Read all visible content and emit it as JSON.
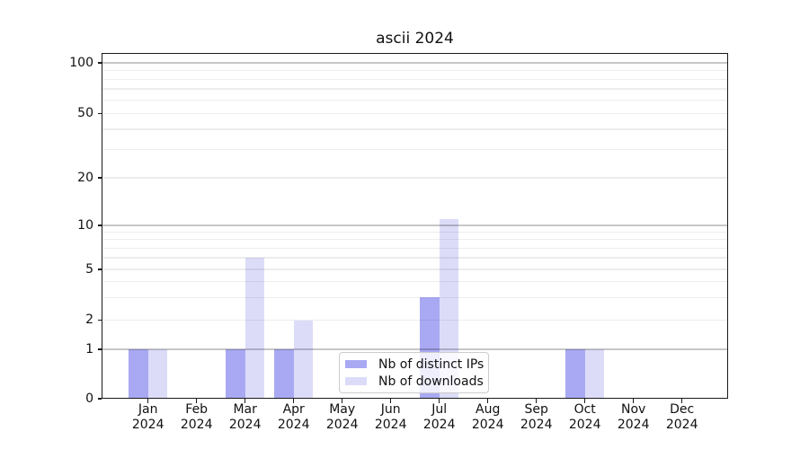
{
  "chart_data": {
    "type": "bar",
    "title": "ascii 2024",
    "categories": [
      "Jan",
      "Feb",
      "Mar",
      "Apr",
      "May",
      "Jun",
      "Jul",
      "Aug",
      "Sep",
      "Oct",
      "Nov",
      "Dec"
    ],
    "year_label": "2024",
    "series": [
      {
        "name": "Nb of distinct IPs",
        "color": "#a9a9f3",
        "values": [
          1,
          0,
          1,
          1,
          0,
          0,
          3,
          0,
          0,
          1,
          0,
          0
        ]
      },
      {
        "name": "Nb of downloads",
        "color": "#dcdcf9",
        "values": [
          1,
          0,
          6,
          2,
          0,
          0,
          11,
          0,
          0,
          1,
          0,
          0
        ]
      }
    ],
    "y_axis": {
      "scale": "symlog",
      "ticks": [
        0,
        1,
        2,
        5,
        10,
        20,
        50,
        100
      ],
      "major_gridlines": [
        1,
        10,
        100
      ],
      "minor_gridlines": [
        2,
        3,
        4,
        5,
        6,
        7,
        8,
        9,
        20,
        30,
        40,
        50,
        60,
        70,
        80,
        90
      ],
      "ylim": [
        0,
        115
      ]
    },
    "xlabel": "",
    "ylabel": "",
    "grid": true,
    "legend": {
      "position": "lower center",
      "framealpha": 0.8
    }
  },
  "colors": {
    "major_grid": "rgba(0,0,0,0.22)",
    "minor_grid": "rgba(0,0,0,0.07)",
    "spine": "#1a1a1a",
    "text": "#111111",
    "legend_border": "#cccccc",
    "legend_bg": "rgba(255,255,255,0.8)"
  }
}
